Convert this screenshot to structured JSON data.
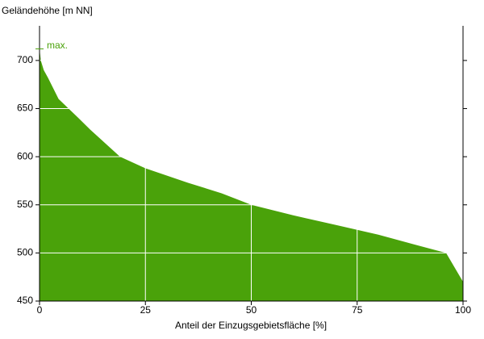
{
  "chart_data": {
    "type": "area",
    "y_label": "Geländehöhe [m NN]",
    "x_label": "Anteil der Einzugsgebietsfläche [%]",
    "x": [
      0,
      0.3,
      1,
      2,
      4.5,
      9,
      12,
      19,
      25,
      35,
      43,
      50,
      60,
      70,
      80,
      90,
      96,
      100
    ],
    "values": [
      712,
      700,
      690,
      682,
      660,
      641,
      628,
      600,
      588,
      573,
      562,
      550,
      539,
      529,
      519,
      507,
      500,
      470
    ],
    "color": "#4aa20a",
    "xlim": [
      0,
      100
    ],
    "xticks": [
      0,
      25,
      50,
      75,
      100
    ],
    "ylim": [
      450,
      736
    ],
    "yticks": [
      450,
      500,
      550,
      600,
      650,
      700
    ],
    "grid": true,
    "annotations": [
      {
        "text": "max.",
        "y": 712
      }
    ]
  }
}
